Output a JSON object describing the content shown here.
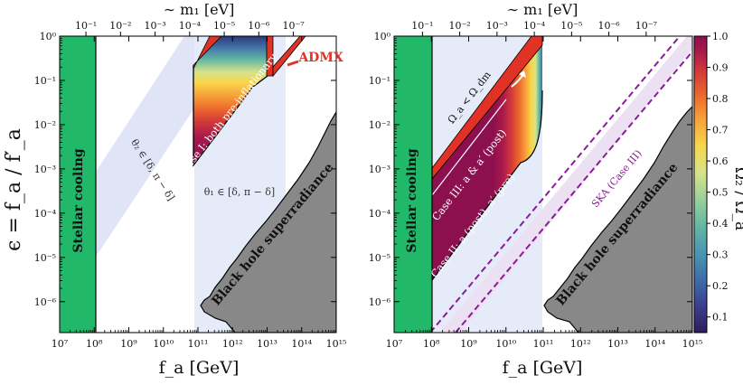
{
  "figure": {
    "xlabel": "f_a [GeV]",
    "ylabel": "ϵ = f_a / f′_a",
    "top_xlabel": "∼ m₁ [eV]",
    "cbar_label": "Ω₂ / Ω_a"
  },
  "chart_data": [
    {
      "type": "area",
      "panel": "left",
      "xscale": "log",
      "yscale": "log",
      "xlim": [
        10000000.0,
        1000000000000000.0
      ],
      "ylim": [
        2e-07,
        1
      ],
      "xlabel": "f_a [GeV]",
      "ylabel": "ϵ = f_a / f′_a",
      "top_xlabel": "∼ m₁ [eV]",
      "x_ticks": [
        "10⁷",
        "10⁸",
        "10⁹",
        "10¹⁰",
        "10¹¹",
        "10¹²",
        "10¹³",
        "10¹⁴",
        "10¹⁵"
      ],
      "y_ticks": [
        "10⁻⁶",
        "10⁻⁵",
        "10⁻⁴",
        "10⁻³",
        "10⁻²",
        "10⁻¹",
        "10⁰"
      ],
      "top_ticks": [
        "10⁻¹",
        "10⁻²",
        "10⁻³",
        "10⁻⁴",
        "10⁻⁵",
        "10⁻⁶",
        "10⁻⁷"
      ],
      "regions": [
        {
          "name": "Stellar cooling",
          "fa_max": 100000000.0,
          "color": "#22b86a"
        },
        {
          "name": "θ₂ ∈ [δ, π − δ]",
          "color": "#dfe5f7"
        },
        {
          "name": "θ₁ ∈ [δ, π − δ]",
          "fa_range": [
            40000000000.0,
            16000000000000.0
          ],
          "color": "#e6ebfa"
        },
        {
          "name": "Case I: both pre-inflationary",
          "fa_range": [
            40000000000.0,
            16000000000000.0
          ],
          "eps_range": [
            0.001,
            1
          ]
        },
        {
          "name": "ADMX",
          "color": "#e13226"
        },
        {
          "name": "Black hole superradiance",
          "color": "#888888"
        }
      ]
    },
    {
      "type": "area",
      "panel": "right",
      "xscale": "log",
      "yscale": "log",
      "xlim": [
        10000000.0,
        1000000000000000.0
      ],
      "ylim": [
        2e-07,
        1
      ],
      "xlabel": "f_a [GeV]",
      "top_xlabel": "∼ m₁ [eV]",
      "x_ticks": [
        "10⁷",
        "10⁸",
        "10⁹",
        "10¹⁰",
        "10¹¹",
        "10¹²",
        "10¹³",
        "10¹⁴",
        "10¹⁵"
      ],
      "y_ticks": [
        "10⁻⁶",
        "10⁻⁵",
        "10⁻⁴",
        "10⁻³",
        "10⁻²",
        "10⁻¹",
        "10⁰"
      ],
      "top_ticks": [
        "10⁻¹",
        "10⁻²",
        "10⁻³",
        "10⁻⁴",
        "10⁻⁵",
        "10⁻⁶",
        "10⁻⁷"
      ],
      "regions": [
        {
          "name": "Stellar cooling",
          "fa_max": 100000000.0,
          "color": "#22b86a"
        },
        {
          "name": "Ω_a < Ω_dm"
        },
        {
          "name": "Case III: a & a′ (post)"
        },
        {
          "name": "Case II: a (post), a′ (pre)"
        },
        {
          "name": "SKA (Case III)",
          "color": "#8b1a9a"
        },
        {
          "name": "Black hole superradiance",
          "color": "#888888"
        }
      ]
    },
    {
      "type": "heatmap",
      "panel": "colorbar",
      "label": "Ω₂ / Ω_a",
      "range": [
        0.05,
        1.0
      ],
      "ticks": [
        "0.1",
        "0.2",
        "0.3",
        "0.4",
        "0.5",
        "0.6",
        "0.7",
        "0.8",
        "0.9",
        "1.0"
      ],
      "colormap": [
        "#2c1e5a",
        "#3b3f8f",
        "#3f6ea8",
        "#4a97b0",
        "#63b7a4",
        "#9bd09a",
        "#d6e38a",
        "#f9d64a",
        "#f7a13a",
        "#ed6a2c",
        "#d3393a",
        "#a8194c",
        "#8c0f4e"
      ]
    }
  ]
}
